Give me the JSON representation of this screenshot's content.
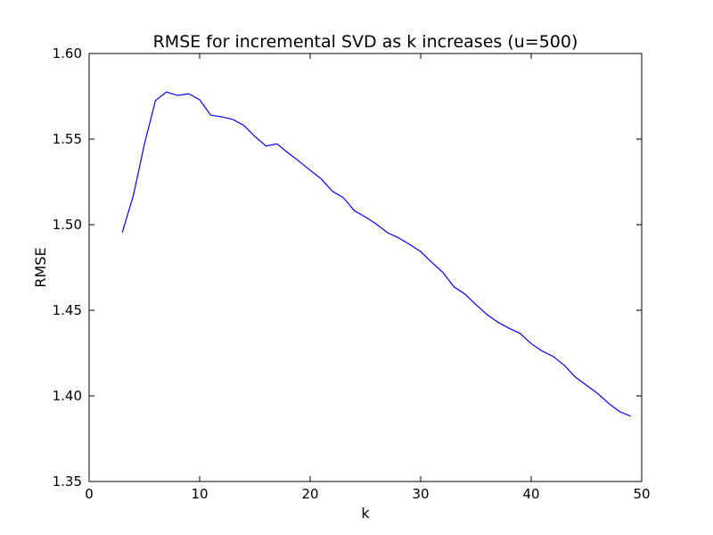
{
  "chart_data": {
    "type": "line",
    "title": "RMSE for incremental SVD as k increases (u=500)",
    "xlabel": "k",
    "ylabel": "RMSE",
    "xlim": [
      0,
      50
    ],
    "ylim": [
      1.35,
      1.6
    ],
    "xticks": [
      0,
      10,
      20,
      30,
      40,
      50
    ],
    "xtick_labels": [
      "0",
      "10",
      "20",
      "30",
      "40",
      "50"
    ],
    "yticks": [
      1.35,
      1.4,
      1.45,
      1.5,
      1.55,
      1.6
    ],
    "ytick_labels": [
      "1.35",
      "1.40",
      "1.45",
      "1.50",
      "1.55",
      "1.60"
    ],
    "grid": false,
    "series": [
      {
        "color": "#0000ff",
        "x": [
          3,
          4,
          5,
          6,
          7,
          8,
          9,
          10,
          11,
          12,
          13,
          14,
          15,
          16,
          17,
          18,
          19,
          20,
          21,
          22,
          23,
          24,
          25,
          26,
          27,
          28,
          29,
          30,
          31,
          32,
          33,
          34,
          35,
          36,
          37,
          38,
          39,
          40,
          41,
          42,
          43,
          44,
          45,
          46,
          47,
          48,
          49
        ],
        "y": [
          1.4955,
          1.517,
          1.547,
          1.5725,
          1.5775,
          1.5755,
          1.5765,
          1.573,
          1.564,
          1.563,
          1.5615,
          1.558,
          1.5515,
          1.546,
          1.5472,
          1.542,
          1.537,
          1.5318,
          1.5268,
          1.5196,
          1.5158,
          1.5082,
          1.5045,
          1.5003,
          1.4953,
          1.4923,
          1.4885,
          1.4843,
          1.478,
          1.4722,
          1.4638,
          1.4595,
          1.4533,
          1.4475,
          1.443,
          1.4395,
          1.4365,
          1.4305,
          1.4262,
          1.423,
          1.4178,
          1.411,
          1.4062,
          1.4015,
          1.3957,
          1.3908,
          1.3882
        ]
      }
    ]
  }
}
